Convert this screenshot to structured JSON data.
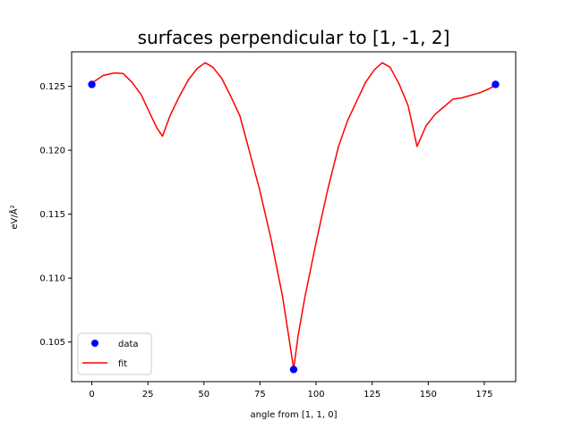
{
  "chart_data": {
    "type": "line",
    "title": "surfaces perpendicular to [1, -1, 2]",
    "xlabel": "angle from [1, 1, 0]",
    "ylabel": "eV/Å²",
    "xlim": [
      -9,
      189
    ],
    "ylim": [
      0.1019,
      0.1277
    ],
    "xticks": [
      0,
      25,
      50,
      75,
      100,
      125,
      150,
      175
    ],
    "yticks": [
      0.105,
      0.11,
      0.115,
      0.12,
      0.125
    ],
    "ytick_labels": [
      "0.105",
      "0.110",
      "0.115",
      "0.120",
      "0.125"
    ],
    "grid": false,
    "legend_position": "lower-left",
    "series": [
      {
        "name": "data",
        "kind": "scatter",
        "color": "#0000ff",
        "x": [
          0,
          90,
          180
        ],
        "y": [
          0.12515,
          0.10285,
          0.12515
        ]
      },
      {
        "name": "fit",
        "kind": "line",
        "color": "#ff0000",
        "x": [
          0,
          5,
          10,
          14,
          18,
          22,
          26,
          29,
          31.5,
          35,
          39,
          43,
          47,
          50.5,
          54,
          58,
          62,
          66,
          70,
          75,
          80,
          85,
          88,
          90,
          92,
          95,
          100,
          105,
          110,
          114,
          118,
          122,
          126,
          129.5,
          133,
          137,
          141,
          145,
          149,
          153,
          157,
          161,
          165,
          169,
          173,
          177,
          180
        ],
        "y": [
          0.12525,
          0.12585,
          0.12605,
          0.126,
          0.1253,
          0.12435,
          0.12285,
          0.12175,
          0.1211,
          0.12275,
          0.1242,
          0.1255,
          0.1264,
          0.12685,
          0.1265,
          0.1256,
          0.1242,
          0.1227,
          0.1201,
          0.1168,
          0.113,
          0.1086,
          0.1052,
          0.1029,
          0.1055,
          0.1085,
          0.1128,
          0.1168,
          0.1203,
          0.1223,
          0.1238,
          0.1253,
          0.1263,
          0.12685,
          0.1265,
          0.1252,
          0.1235,
          0.1203,
          0.1219,
          0.1228,
          0.1234,
          0.124,
          0.1241,
          0.1243,
          0.1245,
          0.1248,
          0.1251
        ]
      }
    ]
  }
}
